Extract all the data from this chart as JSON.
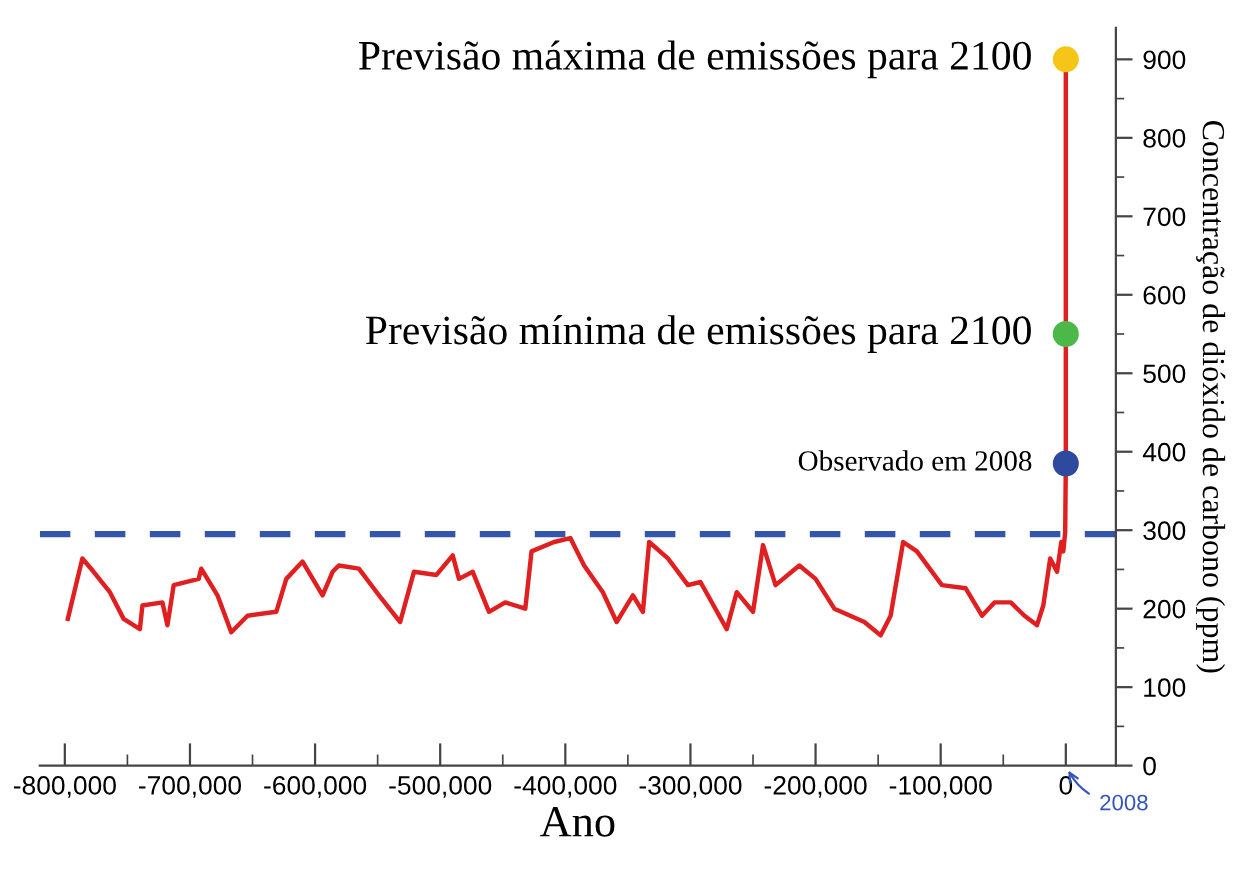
{
  "chart_data": {
    "type": "line",
    "xlabel": "Ano",
    "ylabel": "Concentração de dióxido de carbono (ppm)",
    "xlim": [
      -820000,
      40000
    ],
    "ylim": [
      0,
      940
    ],
    "xticks": [
      {
        "value": -800000,
        "label": "-800,000"
      },
      {
        "value": -700000,
        "label": "-700,000"
      },
      {
        "value": -600000,
        "label": "-600,000"
      },
      {
        "value": -500000,
        "label": "-500,000"
      },
      {
        "value": -400000,
        "label": "-400,000"
      },
      {
        "value": -300000,
        "label": "-300,000"
      },
      {
        "value": -200000,
        "label": "-200,000"
      },
      {
        "value": -100000,
        "label": "-100,000"
      },
      0
    ],
    "yticks": [
      0,
      100,
      200,
      300,
      400,
      500,
      600,
      700,
      800,
      900
    ],
    "grid": false,
    "series": [
      {
        "color": "#e02020",
        "x": [
          -797600,
          -786000,
          -777000,
          -764000,
          -753000,
          -740000,
          -738000,
          -722000,
          -718000,
          -713000,
          -693000,
          -691000,
          -678000,
          -667000,
          -654000,
          -631000,
          -623000,
          -610000,
          -594000,
          -586000,
          -581000,
          -565000,
          -547000,
          -532000,
          -521000,
          -503000,
          -490000,
          -485000,
          -474000,
          -461000,
          -448000,
          -432000,
          -427000,
          -409000,
          -396000,
          -385000,
          -370000,
          -359000,
          -346000,
          -338000,
          -333000,
          -318000,
          -302000,
          -292000,
          -271000,
          -263000,
          -250000,
          -242000,
          -232000,
          -213000,
          -200000,
          -185000,
          -161000,
          -148000,
          -140000,
          -130000,
          -119000,
          -99000,
          -80000,
          -67000,
          -57000,
          -44000,
          -33000,
          -23000,
          -18000,
          -12500,
          -7000,
          -3600,
          -2000,
          -500,
          0,
          0
        ],
        "values": [
          187,
          264,
          247,
          221,
          187,
          174,
          204,
          208,
          179,
          230,
          238,
          251,
          217,
          170,
          191,
          196,
          238,
          260,
          217,
          247,
          255,
          251,
          213,
          183,
          247,
          243,
          268,
          238,
          247,
          196,
          208,
          200,
          273,
          285,
          290,
          255,
          221,
          183,
          217,
          196,
          285,
          264,
          230,
          234,
          174,
          221,
          196,
          281,
          230,
          255,
          238,
          200,
          183,
          166,
          191,
          285,
          273,
          230,
          226,
          191,
          208,
          208,
          191,
          179,
          204,
          264,
          247,
          285,
          273,
          298,
          385,
          900
        ]
      },
      {
        "type": "scatter",
        "color": "#f5c518",
        "x": [
          0
        ],
        "values": [
          900
        ]
      },
      {
        "type": "scatter",
        "color": "#4cb848",
        "x": [
          0
        ],
        "values": [
          550
        ]
      },
      {
        "type": "scatter",
        "color": "#2e4a9e",
        "x": [
          0
        ],
        "values": [
          385
        ]
      }
    ],
    "ref_lines": [
      {
        "axis": "y",
        "value": 295,
        "color": "#3355aa",
        "line_style": "dashed"
      }
    ],
    "annotations": [
      "Previsão máxima de emissões para 2100",
      "Previsão mínima de emissões para 2100",
      "Observado em 2008",
      "2008"
    ]
  }
}
